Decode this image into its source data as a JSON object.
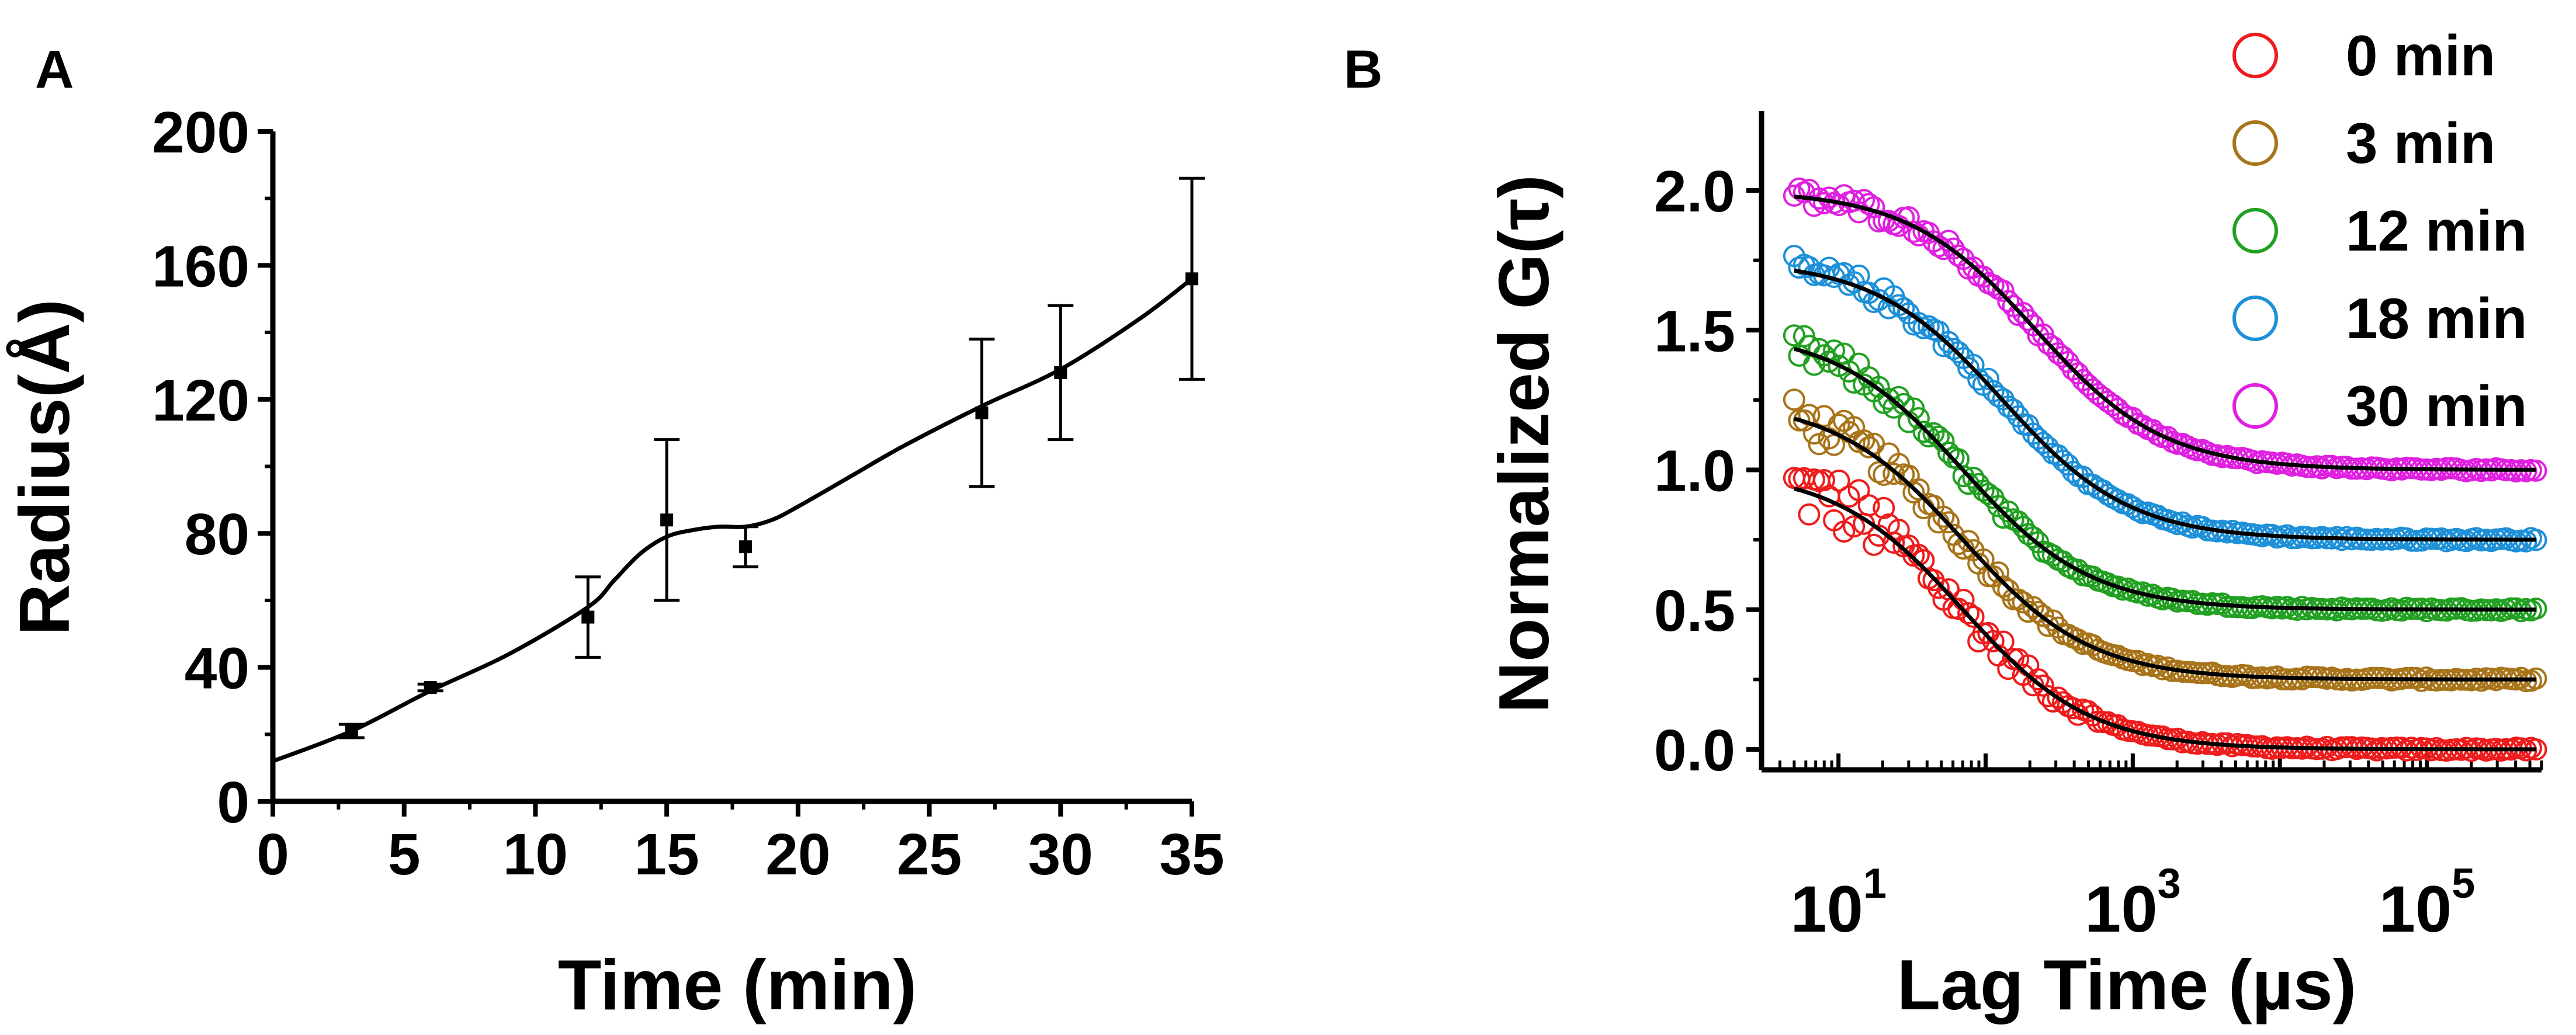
{
  "panels": {
    "a_label": "A",
    "b_label": "B"
  },
  "chart_data": [
    {
      "type": "line",
      "panel": "A",
      "xlabel": "Time (min)",
      "ylabel": "Radius(Å)",
      "xlim": [
        0,
        35
      ],
      "ylim": [
        0,
        200
      ],
      "x_ticks": [
        0,
        5,
        10,
        15,
        20,
        25,
        30,
        35
      ],
      "y_ticks": [
        0,
        40,
        80,
        120,
        160,
        200
      ],
      "series": [
        {
          "points": [
            {
              "x": 3,
              "y": 21,
              "err": 2
            },
            {
              "x": 6,
              "y": 34,
              "err": 1
            },
            {
              "x": 12,
              "y": 55,
              "err": 12
            },
            {
              "x": 15,
              "y": 84,
              "err": 24
            },
            {
              "x": 18,
              "y": 76,
              "err": 6
            },
            {
              "x": 27,
              "y": 116,
              "err": 22
            },
            {
              "x": 30,
              "y": 128,
              "err": 20
            },
            {
              "x": 35,
              "y": 156,
              "err": 30
            }
          ],
          "fit": {
            "x": [
              0,
              3,
              6,
              9,
              12,
              13,
              14,
              15,
              16,
              17,
              18,
              19,
              20,
              22,
              24,
              27,
              30,
              33,
              35
            ],
            "y": [
              12,
              21,
              33,
              44,
              58,
              66,
              74,
              79,
              81,
              82,
              82,
              84,
              88,
              97,
              106,
              118,
              129,
              144,
              156
            ]
          }
        }
      ],
      "colors": {
        "line": "#000000"
      }
    },
    {
      "type": "scatter",
      "panel": "B",
      "xlabel": "Lag Time (µs)",
      "ylabel": "Normalized G(τ)",
      "xscale": "log",
      "xlim": [
        3,
        600000
      ],
      "ylim": [
        -0.08,
        2.25
      ],
      "x_ticks": [
        {
          "value": 10,
          "base": "10",
          "exp": "1"
        },
        {
          "value": 1000,
          "base": "10",
          "exp": "3"
        },
        {
          "value": 100000,
          "base": "10",
          "exp": "5"
        }
      ],
      "y_ticks": [
        "0.0",
        "0.5",
        "1.0",
        "1.5",
        "2.0"
      ],
      "legend_position": "top-right",
      "series": [
        {
          "name": "0 min",
          "color": "#ee1c1c",
          "offset": 0.0,
          "amplitude": 1.0,
          "tau": 70,
          "noise": 0.13
        },
        {
          "name": "3 min",
          "color": "#a8741a",
          "offset": 0.25,
          "amplitude": 1.0,
          "tau": 70,
          "noise": 0.07
        },
        {
          "name": "12 min",
          "color": "#22a022",
          "offset": 0.5,
          "amplitude": 1.0,
          "tau": 70,
          "noise": 0.06
        },
        {
          "name": "18 min",
          "color": "#1e90d8",
          "offset": 0.75,
          "amplitude": 1.0,
          "tau": 130,
          "noise": 0.05
        },
        {
          "name": "30 min",
          "color": "#e020e0",
          "offset": 1.0,
          "amplitude": 1.0,
          "tau": 220,
          "noise": 0.04
        }
      ],
      "fit_color": "#000000"
    }
  ]
}
